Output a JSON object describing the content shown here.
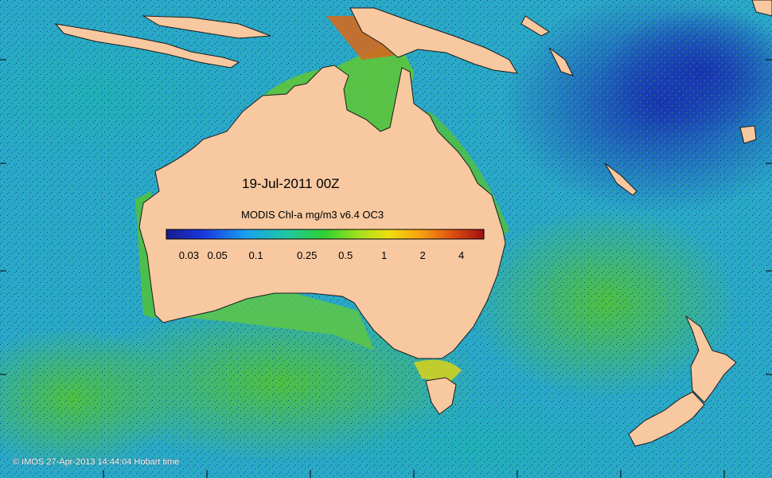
{
  "map": {
    "title": "19-Jul-2011 00Z",
    "legend_title": "MODIS Chl-a mg/m3 v6.4 OC3",
    "legend_ticks": [
      "0.03",
      "0.05",
      "0.1",
      "0.25",
      "0.5",
      "1",
      "2",
      "4"
    ],
    "legend_tick_values": [
      0.03,
      0.05,
      0.1,
      0.25,
      0.5,
      1,
      2,
      4
    ],
    "legend_range": [
      0.02,
      6
    ],
    "credit": "© IMOS 27-Apr-2013 14:44:04 Hobart time",
    "colors": {
      "land": "#f8c8a0",
      "deep_ocean": "#1a3aa8",
      "mid_ocean": "#2aa8c8",
      "shelf": "#40c040",
      "bloom": "#c85010"
    },
    "colorbar_stops": [
      "#1a1a8c",
      "#1a3ae0",
      "#1aa0f0",
      "#20c8a0",
      "#30d030",
      "#a0e020",
      "#f0e010",
      "#f8a010",
      "#e05010",
      "#a01010"
    ]
  }
}
